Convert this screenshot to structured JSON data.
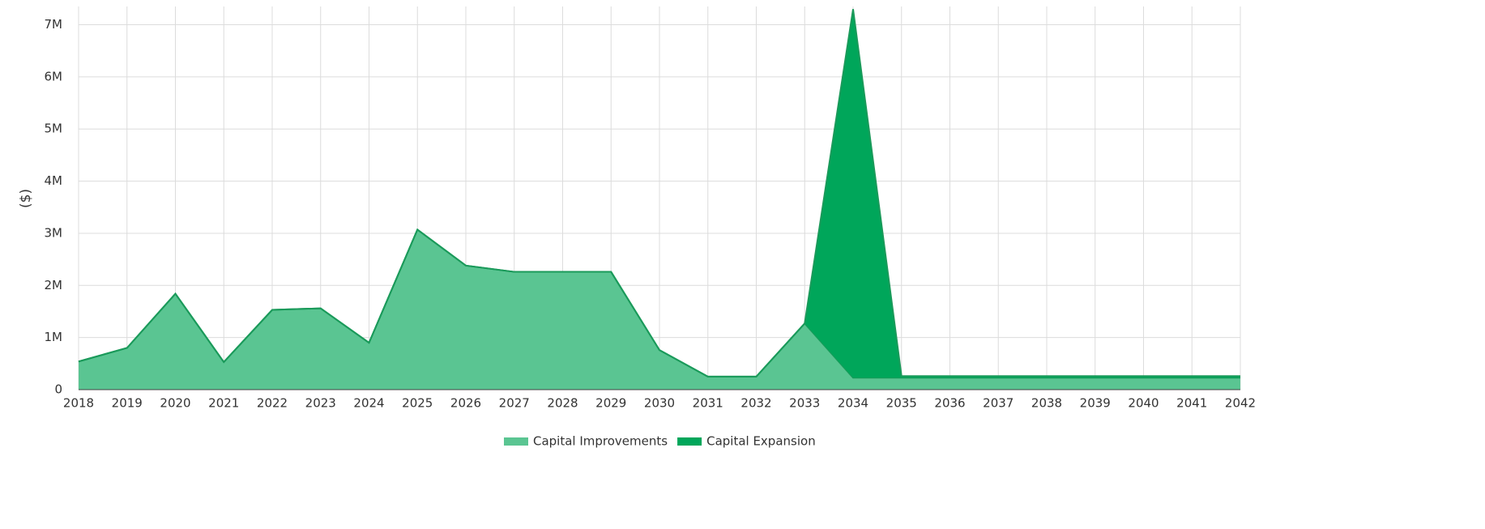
{
  "chart_data": {
    "type": "stacked_area",
    "y_label": "($)",
    "x": [
      2018,
      2019,
      2020,
      2021,
      2022,
      2023,
      2024,
      2025,
      2026,
      2027,
      2028,
      2029,
      2030,
      2031,
      2032,
      2033,
      2034,
      2035,
      2036,
      2037,
      2038,
      2039,
      2040,
      2041,
      2042
    ],
    "series": [
      {
        "name": "Capital Improvements",
        "color": "#5ac592",
        "values": [
          540000,
          800000,
          1840000,
          530000,
          1530000,
          1560000,
          900000,
          3070000,
          2380000,
          2260000,
          2260000,
          2260000,
          760000,
          250000,
          250000,
          1270000,
          230000,
          230000,
          230000,
          230000,
          230000,
          230000,
          230000,
          230000,
          230000
        ]
      },
      {
        "name": "Capital Expansion",
        "color": "#00a65a",
        "values": [
          0,
          0,
          0,
          0,
          0,
          0,
          0,
          0,
          0,
          0,
          0,
          0,
          0,
          0,
          0,
          0,
          7070000,
          30000,
          30000,
          30000,
          30000,
          30000,
          30000,
          30000,
          30000
        ]
      }
    ],
    "xlim": [
      2018,
      2042
    ],
    "xticks": [
      2018,
      2019,
      2020,
      2021,
      2022,
      2023,
      2024,
      2025,
      2026,
      2027,
      2028,
      2029,
      2030,
      2031,
      2032,
      2033,
      2034,
      2035,
      2036,
      2037,
      2038,
      2039,
      2040,
      2041,
      2042
    ],
    "ylim": [
      0,
      7350000
    ],
    "yticks": [
      0,
      {
        "value": 1000000,
        "label": "1M"
      },
      {
        "value": 2000000,
        "label": "2M"
      },
      {
        "value": 3000000,
        "label": "3M"
      },
      {
        "value": 4000000,
        "label": "4M"
      },
      {
        "value": 5000000,
        "label": "5M"
      },
      {
        "value": 6000000,
        "label": "6M"
      },
      {
        "value": 7000000,
        "label": "7M"
      }
    ],
    "grid": true,
    "legend": "bottom"
  }
}
